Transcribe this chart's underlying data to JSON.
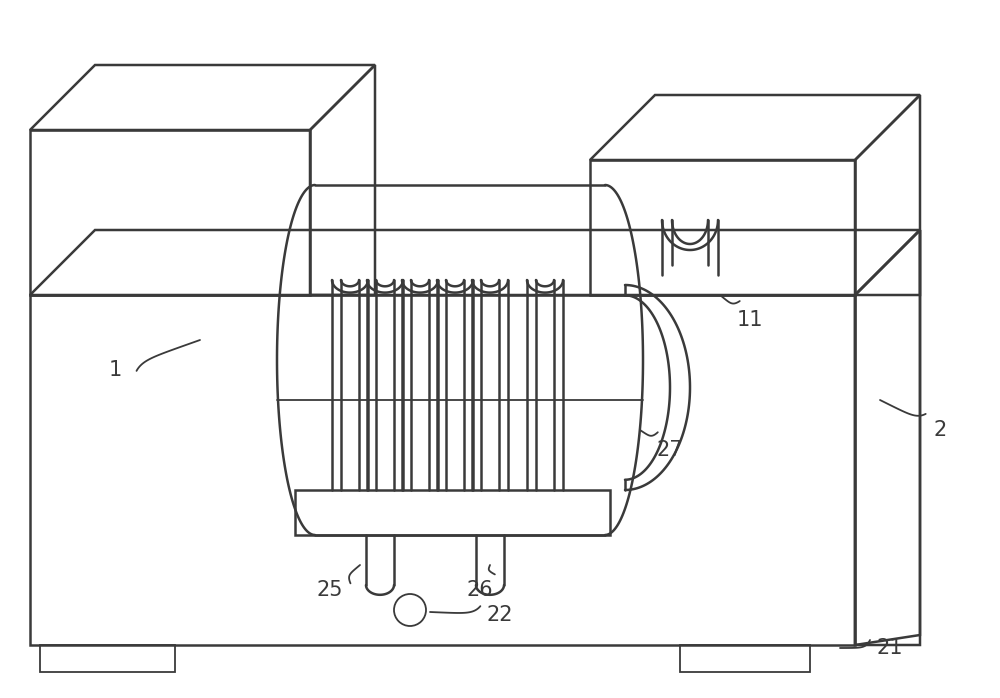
{
  "bg_color": "#ffffff",
  "lc": "#3a3a3a",
  "lw": 1.8,
  "tlw": 1.3,
  "fig_w": 10.0,
  "fig_h": 6.98,
  "label_fs": 15
}
